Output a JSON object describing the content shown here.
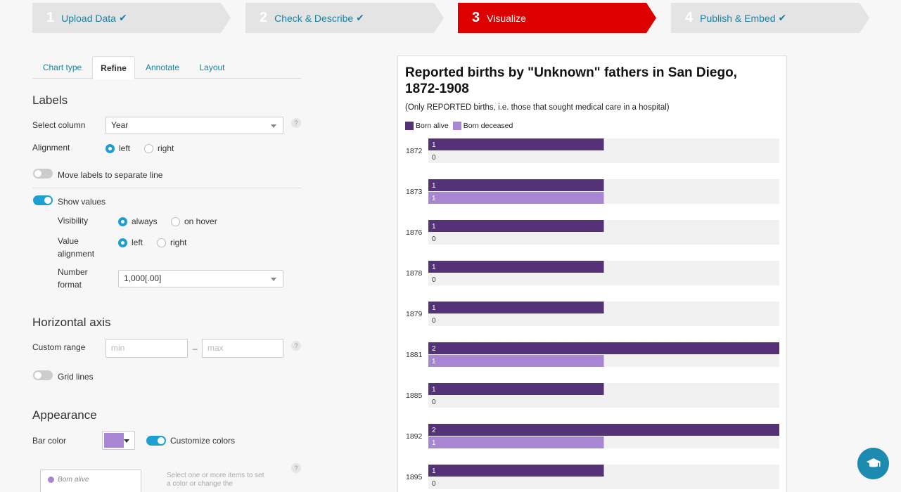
{
  "steps": [
    {
      "num": "1",
      "label": "Upload Data",
      "done": true
    },
    {
      "num": "2",
      "label": "Check & Describe",
      "done": true
    },
    {
      "num": "3",
      "label": "Visualize",
      "done": false
    },
    {
      "num": "4",
      "label": "Publish & Embed",
      "done": true
    }
  ],
  "check_glyph": "✔",
  "tabs": [
    "Chart type",
    "Refine",
    "Annotate",
    "Layout"
  ],
  "labels_section": {
    "title": "Labels",
    "select_column_label": "Select column",
    "select_column_value": "Year",
    "alignment_label": "Alignment",
    "alignment_left": "left",
    "alignment_right": "right",
    "move_labels": "Move labels to separate line",
    "show_values": "Show values",
    "visibility_label": "Visibility",
    "visibility_always": "always",
    "visibility_hover": "on hover",
    "value_alignment_label_1": "Value",
    "value_alignment_label_2": "alignment",
    "value_left": "left",
    "value_right": "right",
    "number_format_label_1": "Number",
    "number_format_label_2": "format",
    "number_format_value": "1,000[.00]"
  },
  "axis_section": {
    "title": "Horizontal axis",
    "custom_range_label": "Custom range",
    "min_placeholder": "min",
    "max_placeholder": "max",
    "range_dash": "–",
    "grid_lines": "Grid lines"
  },
  "appearance_section": {
    "title": "Appearance",
    "bar_color_label": "Bar color",
    "customize_colors": "Customize colors",
    "legend_item": "Born alive",
    "hint": "Select one or more items to set a color or change the"
  },
  "help_glyph": "?",
  "colors": {
    "accent": "#1d9fd2",
    "active_step": "#dd0000",
    "born_alive": "#553278",
    "born_deceased": "#a886d3",
    "bar_bg": "#f1f1f1"
  },
  "chart_data": {
    "type": "bar",
    "title": "Reported births by \"Unknown\" fathers in San Diego, 1872-1908",
    "subtitle": "(Only REPORTED births, i.e. those that sought medical care in a hospital)",
    "categories": [
      "1872",
      "1873",
      "1876",
      "1878",
      "1879",
      "1881",
      "1885",
      "1892",
      "1895"
    ],
    "series": [
      {
        "name": "Born alive",
        "values": [
          1,
          1,
          1,
          1,
          1,
          2,
          1,
          2,
          1
        ]
      },
      {
        "name": "Born deceased",
        "values": [
          0,
          1,
          0,
          0,
          0,
          1,
          0,
          1,
          0
        ]
      }
    ],
    "xlim": [
      0,
      2
    ],
    "grid": false,
    "legend": "top-left"
  }
}
